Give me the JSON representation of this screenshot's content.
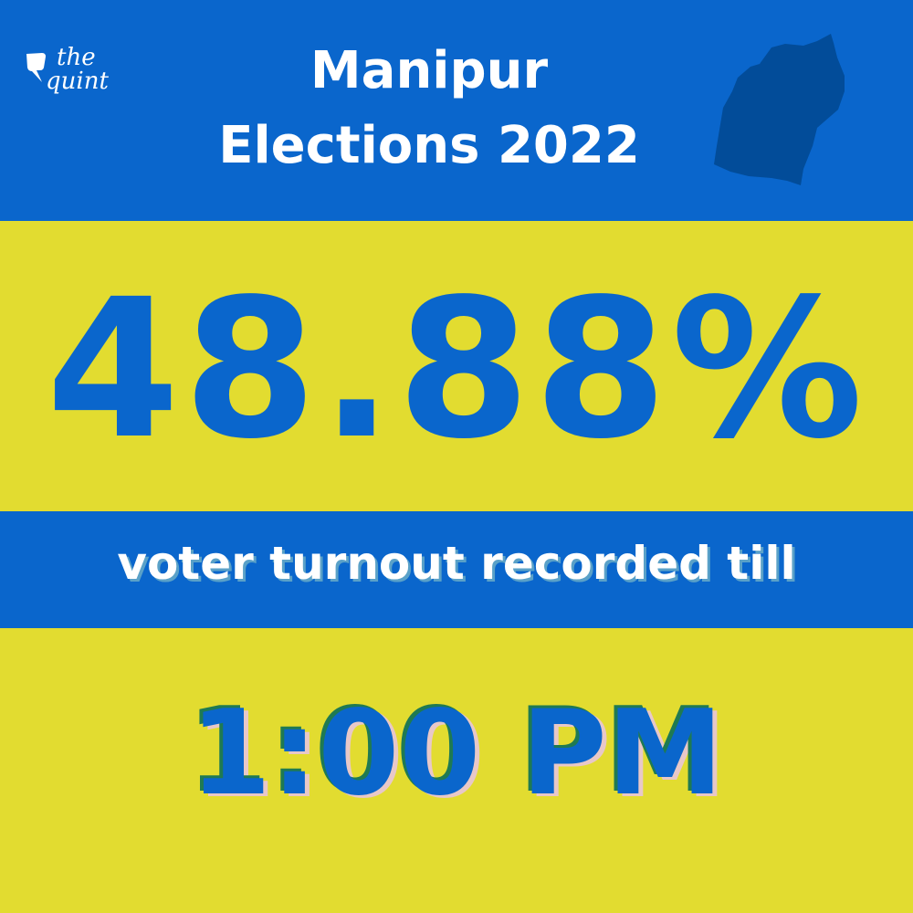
{
  "brand": {
    "logo_text_line1": "the",
    "logo_text_line2": "quint"
  },
  "header": {
    "title_line1": "Manipur",
    "title_line2": "Elections 2022",
    "map_icon": "manipur-map-icon"
  },
  "main": {
    "turnout": "48.88%",
    "caption": "voter turnout recorded till",
    "time": "1:00 PM"
  },
  "colors": {
    "blue": "#0a66cc",
    "yellow": "#e2dc30",
    "map": "#024c99",
    "text": "#ffffff"
  }
}
